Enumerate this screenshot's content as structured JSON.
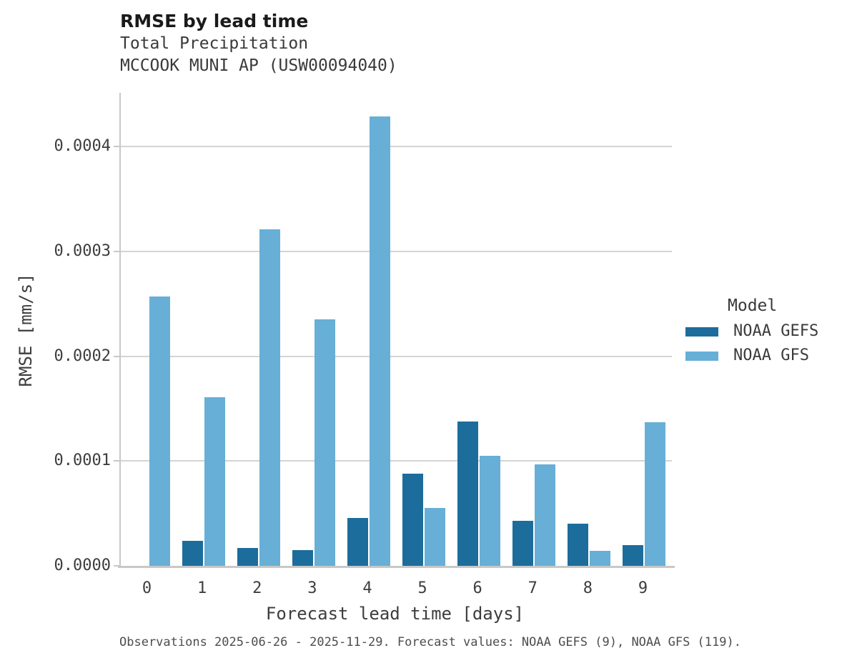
{
  "chart_data": {
    "type": "bar",
    "title": "RMSE by lead time",
    "subtitle": "Total Precipitation",
    "station": "MCCOOK MUNI AP (USW00094040)",
    "xlabel": "Forecast lead time [days]",
    "ylabel": "RMSE [mm/s]",
    "categories": [
      "0",
      "1",
      "2",
      "3",
      "4",
      "5",
      "6",
      "7",
      "8",
      "9"
    ],
    "series": [
      {
        "name": "NOAA GEFS",
        "color": "#1c6d9c",
        "values": [
          null,
          2.4e-05,
          1.7e-05,
          1.5e-05,
          4.6e-05,
          8.8e-05,
          0.000138,
          4.3e-05,
          4e-05,
          2e-05
        ]
      },
      {
        "name": "NOAA GFS",
        "color": "#67afd6",
        "values": [
          0.000257,
          0.000161,
          0.000321,
          0.000235,
          0.000429,
          5.5e-05,
          0.000105,
          9.7e-05,
          1.4e-05,
          0.000137
        ]
      }
    ],
    "yticks": [
      0.0,
      0.0001,
      0.0002,
      0.0003,
      0.0004
    ],
    "ytick_labels": [
      "0.0000",
      "0.0001",
      "0.0002",
      "0.0003",
      "0.0004"
    ],
    "ylim": [
      0,
      0.000451
    ],
    "grid": "horizontal",
    "legend_title": "Model",
    "legend_position": "right",
    "caption": "Observations 2025-06-26 - 2025-11-29. Forecast values: NOAA GEFS (9), NOAA GFS (119)."
  },
  "colors": {
    "gridline": "#d4d4d4",
    "spine": "#c8c8c8",
    "title_text": "#1a1a1a",
    "axis_text": "#3d3d3d",
    "caption_text": "#4d4d4d"
  }
}
